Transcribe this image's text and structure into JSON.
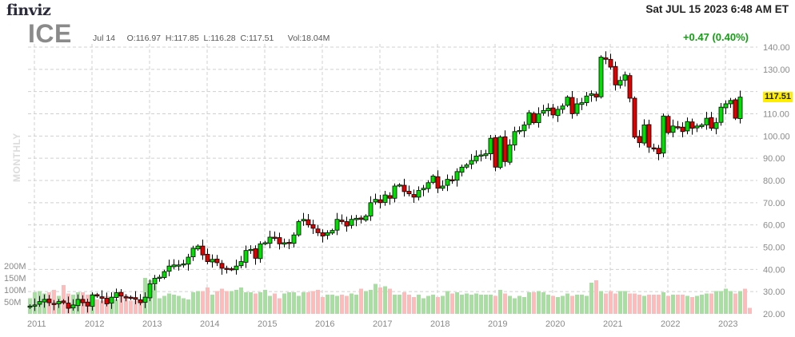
{
  "header": {
    "logo_text": "finviz",
    "datetime": "Sat JUL 15 2023 6:48 AM ET",
    "ticker": "ICE",
    "ohlc_line": "Jul 14     O:116.97  H:117.85  L:116.28  C:117.51      Vol:18.04M",
    "change": "+0.47 (0.40%)",
    "timeframe": "MONTHLY",
    "last_price": "117.51"
  },
  "colors": {
    "up": "#00e000",
    "down": "#e00000",
    "vol_up": "#a8dea2",
    "vol_down": "#fcbcbc",
    "grid": "#d0d0d0",
    "last_price_bg": "#ffee00",
    "change": "#12a012"
  },
  "chart_data": {
    "type": "candlestick",
    "title": "ICE",
    "timeframe": "Monthly",
    "xlabel": "",
    "ylabel": "",
    "ylim": [
      20,
      140
    ],
    "y_ticks": [
      20,
      30,
      40,
      50,
      60,
      70,
      80,
      90,
      100,
      110,
      120,
      130,
      140
    ],
    "x_ticks": [
      "2011",
      "2012",
      "2013",
      "2014",
      "2015",
      "2016",
      "2017",
      "2018",
      "2019",
      "2020",
      "2021",
      "2022",
      "2023"
    ],
    "volume_ticks": [
      "50M",
      "100M",
      "150M",
      "200M"
    ],
    "grid": true,
    "last_close": 117.51,
    "start": "2011-01",
    "closes": [
      23.5,
      24.0,
      25.5,
      26.5,
      25.0,
      24.5,
      25.5,
      25.0,
      22.5,
      24.0,
      26.5,
      25.0,
      23.5,
      28.5,
      28.0,
      27.0,
      24.5,
      27.5,
      29.5,
      28.0,
      27.5,
      27.0,
      26.5,
      25.0,
      27.5,
      33.5,
      36.0,
      36.5,
      39.0,
      41.5,
      42.0,
      42.0,
      42.5,
      45.5,
      49.5,
      50.5,
      46.5,
      43.5,
      44.5,
      43.0,
      40.5,
      40.0,
      40.0,
      41.5,
      43.5,
      48.5,
      49.0,
      45.0,
      51.5,
      52.0,
      54.5,
      54.0,
      51.5,
      52.0,
      52.0,
      55.5,
      61.5,
      62.5,
      60.0,
      58.5,
      56.5,
      55.0,
      56.5,
      57.5,
      62.5,
      61.5,
      59.5,
      62.5,
      63.0,
      62.5,
      64.0,
      70.0,
      71.5,
      70.0,
      73.5,
      72.0,
      77.5,
      78.0,
      75.0,
      74.0,
      72.5,
      75.5,
      76.5,
      79.0,
      82.0,
      76.5,
      77.5,
      80.5,
      80.0,
      84.0,
      86.0,
      87.0,
      89.0,
      91.0,
      91.5,
      92.0,
      99.0,
      86.0,
      99.5,
      88.5,
      96.0,
      102.0,
      102.5,
      105.0,
      110.5,
      106.0,
      110.0,
      111.5,
      112.5,
      109.5,
      112.0,
      113.5,
      117.5,
      110.0,
      114.5,
      115.0,
      118.0,
      119.0,
      117.5,
      135.5,
      134.5,
      131.0,
      123.0,
      125.0,
      127.5,
      117.0,
      99.5,
      97.0,
      105.0,
      95.0,
      94.5,
      92.0,
      109.0,
      101.5,
      104.5,
      104.0,
      102.0,
      106.5,
      103.5,
      104.5,
      105.0,
      108.0,
      103.5,
      106.0,
      113.0,
      114.5,
      116.0,
      108.0,
      117.51
    ],
    "volumes_M": [
      65,
      90,
      95,
      85,
      90,
      100,
      75,
      120,
      85,
      80,
      90,
      90,
      80,
      85,
      60,
      55,
      75,
      55,
      60,
      75,
      80,
      55,
      55,
      50,
      150,
      140,
      120,
      65,
      75,
      85,
      80,
      75,
      65,
      60,
      90,
      95,
      95,
      110,
      80,
      95,
      105,
      95,
      95,
      100,
      110,
      90,
      90,
      85,
      90,
      100,
      75,
      85,
      65,
      85,
      90,
      90,
      75,
      90,
      90,
      95,
      100,
      70,
      80,
      80,
      75,
      80,
      75,
      85,
      80,
      105,
      95,
      100,
      125,
      110,
      115,
      105,
      80,
      80,
      90,
      80,
      70,
      80,
      65,
      75,
      80,
      70,
      75,
      95,
      85,
      90,
      80,
      85,
      80,
      85,
      80,
      80,
      80,
      75,
      100,
      85,
      75,
      65,
      75,
      70,
      90,
      90,
      95,
      90,
      80,
      75,
      70,
      75,
      85,
      75,
      80,
      80,
      75,
      130,
      140,
      95,
      85,
      95,
      85,
      95,
      95,
      85,
      85,
      80,
      75,
      80,
      80,
      80,
      90,
      75,
      80,
      80,
      80,
      75,
      70,
      75,
      80,
      85,
      85,
      95,
      95,
      105,
      95,
      85,
      95,
      105,
      25
    ]
  }
}
